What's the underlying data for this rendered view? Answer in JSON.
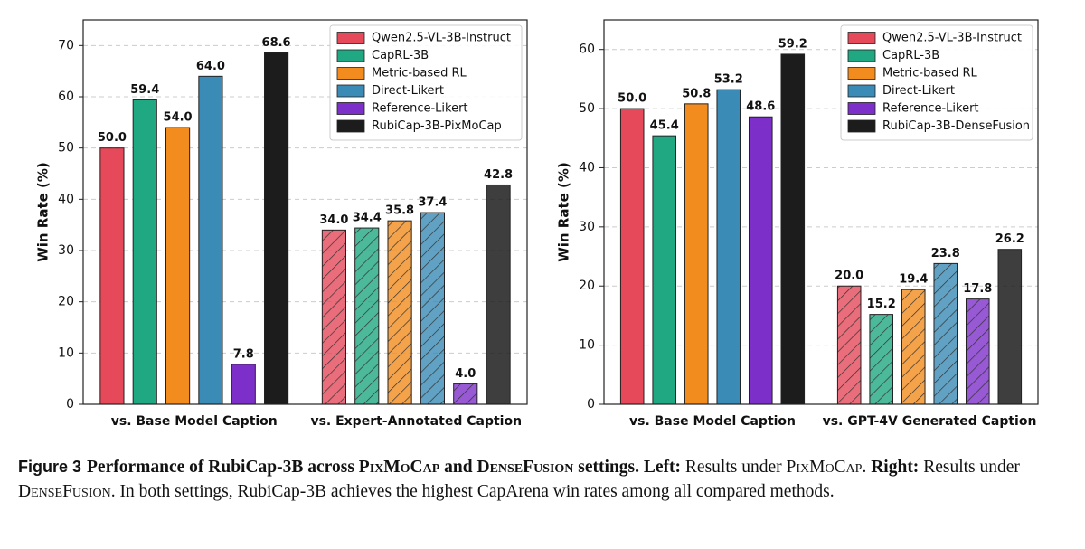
{
  "chart_data": [
    {
      "type": "bar",
      "ylabel": "Win Rate (%)",
      "categories": [
        "vs. Base Model Caption",
        "vs. Expert-Annotated Caption"
      ],
      "series": [
        {
          "name": "Qwen2.5-VL-3B-Instruct",
          "color": "#e5495a",
          "values": [
            50.0,
            34.0
          ],
          "value_labels": [
            "50.0",
            "34.0"
          ],
          "hatch": [
            false,
            true
          ]
        },
        {
          "name": "CapRL-3B",
          "color": "#1fa882",
          "values": [
            59.4,
            34.4
          ],
          "value_labels": [
            "59.4",
            "34.4"
          ],
          "hatch": [
            false,
            true
          ]
        },
        {
          "name": "Metric-based RL",
          "color": "#f28c1e",
          "values": [
            54.0,
            35.8
          ],
          "value_labels": [
            "54.0",
            "35.8"
          ],
          "hatch": [
            false,
            true
          ]
        },
        {
          "name": "Direct-Likert",
          "color": "#3a8bb5",
          "values": [
            64.0,
            37.4
          ],
          "value_labels": [
            "64.0",
            "37.4"
          ],
          "hatch": [
            false,
            true
          ]
        },
        {
          "name": "Reference-Likert",
          "color": "#7d2fc9",
          "values": [
            7.8,
            4.0
          ],
          "value_labels": [
            "7.8",
            "4.0"
          ],
          "hatch": [
            false,
            true
          ]
        },
        {
          "name": "RubiCap-3B-PixMoCap",
          "color": "#1c1c1c",
          "values": [
            68.6,
            42.8
          ],
          "value_labels": [
            "68.6",
            "42.8"
          ],
          "hatch": [
            false,
            false
          ]
        }
      ],
      "ylim": [
        0,
        75
      ],
      "yticks": [
        0,
        10,
        20,
        30,
        40,
        50,
        60,
        70
      ],
      "grid": true,
      "legend": "upper right"
    },
    {
      "type": "bar",
      "ylabel": "Win Rate (%)",
      "categories": [
        "vs. Base Model Caption",
        "vs. GPT-4V Generated Caption"
      ],
      "series": [
        {
          "name": "Qwen2.5-VL-3B-Instruct",
          "color": "#e5495a",
          "values": [
            50.0,
            20.0
          ],
          "value_labels": [
            "50.0",
            "20.0"
          ],
          "hatch": [
            false,
            true
          ]
        },
        {
          "name": "CapRL-3B",
          "color": "#1fa882",
          "values": [
            45.4,
            15.2
          ],
          "value_labels": [
            "45.4",
            "15.2"
          ],
          "hatch": [
            false,
            true
          ]
        },
        {
          "name": "Metric-based RL",
          "color": "#f28c1e",
          "values": [
            50.8,
            19.4
          ],
          "value_labels": [
            "50.8",
            "19.4"
          ],
          "hatch": [
            false,
            true
          ]
        },
        {
          "name": "Direct-Likert",
          "color": "#3a8bb5",
          "values": [
            53.2,
            23.8
          ],
          "value_labels": [
            "53.2",
            "23.8"
          ],
          "hatch": [
            false,
            true
          ]
        },
        {
          "name": "Reference-Likert",
          "color": "#7d2fc9",
          "values": [
            48.6,
            17.8
          ],
          "value_labels": [
            "48.6",
            "17.8"
          ],
          "hatch": [
            false,
            true
          ]
        },
        {
          "name": "RubiCap-3B-DenseFusion",
          "color": "#1c1c1c",
          "values": [
            59.2,
            26.2
          ],
          "value_labels": [
            "59.2",
            "26.2"
          ],
          "hatch": [
            false,
            false
          ]
        }
      ],
      "ylim": [
        0,
        65
      ],
      "yticks": [
        0,
        10,
        20,
        30,
        40,
        50,
        60
      ],
      "grid": true,
      "legend": "upper right"
    }
  ],
  "caption": {
    "parts": [
      "Figure 3",
      "Performance of RubiCap-3B across ",
      "PixMoCap",
      " and ",
      "DenseFusion",
      " settings. Left:",
      " Results under ",
      "PixMoCap",
      ". ",
      "Right:",
      " Results under ",
      "DenseFusion",
      ". In both settings, RubiCap-3B achieves the highest CapArena win rates among all compared methods."
    ]
  }
}
